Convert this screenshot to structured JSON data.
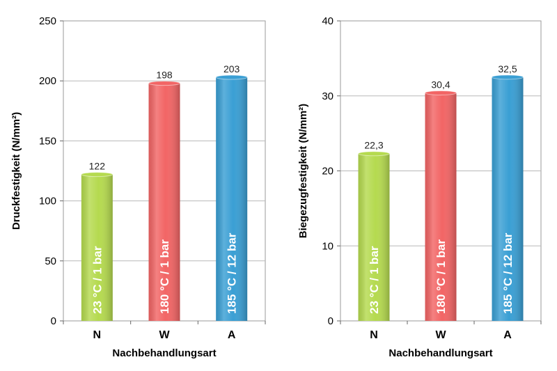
{
  "chart_data": [
    {
      "type": "bar",
      "categories": [
        "N",
        "W",
        "A"
      ],
      "values": [
        122,
        198,
        203
      ],
      "data_labels": [
        "122",
        "198",
        "203"
      ],
      "bar_labels": [
        "23 °C / 1 bar",
        "180 °C / 1 bar",
        "185 °C / 12 bar"
      ],
      "colors": [
        "#b5da4f",
        "#f26565",
        "#3a9fd4"
      ],
      "xlabel": "Nachbehandlungsart",
      "ylabel": "Druckfestigkeit (N/mm²)",
      "ylim": [
        0,
        250
      ],
      "yticks": [
        "0",
        "50",
        "100",
        "150",
        "200",
        "250"
      ],
      "grid": true,
      "legend": "none"
    },
    {
      "type": "bar",
      "categories": [
        "N",
        "W",
        "A"
      ],
      "values": [
        22.3,
        30.4,
        32.5
      ],
      "data_labels": [
        "22,3",
        "30,4",
        "32,5"
      ],
      "bar_labels": [
        "23 °C / 1 bar",
        "180 °C / 1 bar",
        "185 °C / 12 bar"
      ],
      "colors": [
        "#b5da4f",
        "#f26565",
        "#3a9fd4"
      ],
      "xlabel": "Nachbehandlungsart",
      "ylabel": "Biegezugfestigkeit (N/mm²)",
      "ylim": [
        0,
        40
      ],
      "yticks": [
        "0",
        "10",
        "20",
        "30",
        "40"
      ],
      "grid": true,
      "legend": "none"
    }
  ]
}
